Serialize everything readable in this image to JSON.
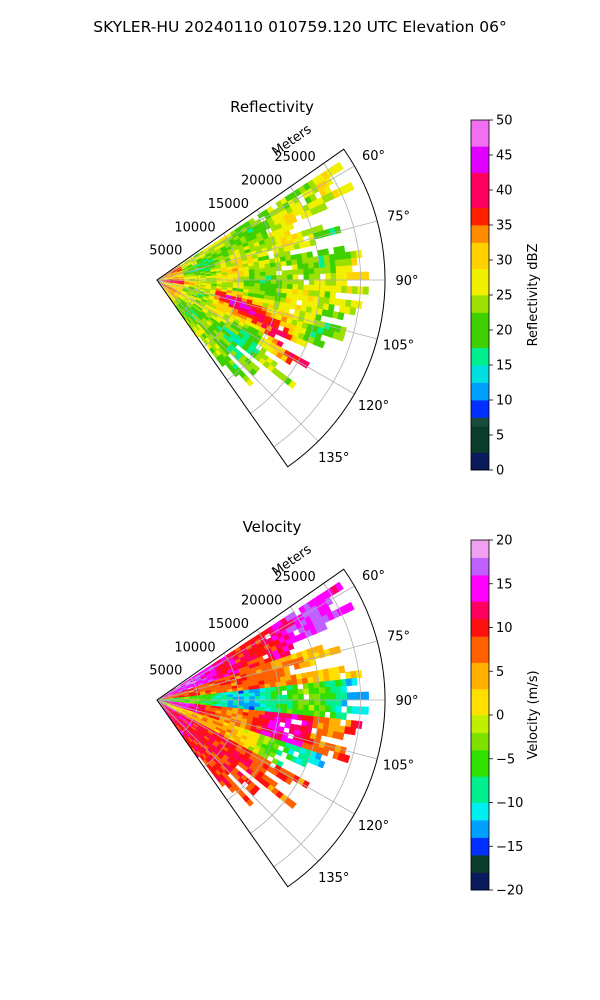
{
  "figure_title": "SKYLER-HU  20240110  010759.120 UTC Elevation 06°",
  "chart_data": [
    {
      "type": "heatmap",
      "projection": "polar-sector",
      "title": "Reflectivity",
      "radial_label": "Meters",
      "radial_ticks": [
        "5000",
        "10000",
        "15000",
        "20000",
        "25000"
      ],
      "radial_values": [
        5000,
        10000,
        15000,
        20000,
        25000
      ],
      "rmax": 28000,
      "azimuth_range": [
        55,
        145
      ],
      "azimuth_ticks": [
        "60°",
        "75°",
        "90°",
        "105°",
        "120°",
        "135°"
      ],
      "azimuth_values": [
        60,
        75,
        90,
        105,
        120,
        135
      ],
      "colorbar_label": "Reflectivity dBZ",
      "colorbar_range": [
        0,
        50
      ],
      "colorbar_ticks": [
        "0",
        "5",
        "10",
        "15",
        "20",
        "25",
        "30",
        "35",
        "40",
        "45",
        "50"
      ],
      "colorbar_tick_values": [
        0,
        5,
        10,
        15,
        20,
        25,
        30,
        35,
        40,
        45,
        50
      ],
      "colormap_stops": [
        [
          0,
          "#0a1a5c"
        ],
        [
          3,
          "#0b3b2a"
        ],
        [
          6,
          "#1a4a3a"
        ],
        [
          8,
          "#0030ff"
        ],
        [
          10,
          "#00a0ff"
        ],
        [
          12,
          "#00e0e0"
        ],
        [
          15,
          "#00f090"
        ],
        [
          18,
          "#40d000"
        ],
        [
          22,
          "#9be000"
        ],
        [
          25,
          "#f0f000"
        ],
        [
          29,
          "#ffd200"
        ],
        [
          32,
          "#ff8c00"
        ],
        [
          35,
          "#ff2000"
        ],
        [
          38,
          "#ff0060"
        ],
        [
          42,
          "#e000ff"
        ],
        [
          46,
          "#f070f0"
        ],
        [
          50,
          "#ffe8ff"
        ]
      ]
    },
    {
      "type": "heatmap",
      "projection": "polar-sector",
      "title": "Velocity",
      "radial_label": "Meters",
      "radial_ticks": [
        "5000",
        "10000",
        "15000",
        "20000",
        "25000"
      ],
      "radial_values": [
        5000,
        10000,
        15000,
        20000,
        25000
      ],
      "rmax": 28000,
      "azimuth_range": [
        55,
        145
      ],
      "azimuth_ticks": [
        "60°",
        "75°",
        "90°",
        "105°",
        "120°",
        "135°"
      ],
      "azimuth_values": [
        60,
        75,
        90,
        105,
        120,
        135
      ],
      "colorbar_label": "Velocity (m/s)",
      "colorbar_range": [
        -20,
        20
      ],
      "colorbar_ticks": [
        "−20",
        "−15",
        "−10",
        "−5",
        "0",
        "5",
        "10",
        "15",
        "20"
      ],
      "colorbar_tick_values": [
        -20,
        -15,
        -10,
        -5,
        0,
        5,
        10,
        15,
        20
      ],
      "colormap_stops": [
        [
          -20,
          "#0a1a5c"
        ],
        [
          -18,
          "#0b3b2a"
        ],
        [
          -16,
          "#0030ff"
        ],
        [
          -14,
          "#00a0ff"
        ],
        [
          -12,
          "#00f0f0"
        ],
        [
          -10,
          "#00f090"
        ],
        [
          -7,
          "#30e000"
        ],
        [
          -4,
          "#80e000"
        ],
        [
          -2,
          "#c0f000"
        ],
        [
          0,
          "#ffe000"
        ],
        [
          3,
          "#ffb000"
        ],
        [
          6,
          "#ff6000"
        ],
        [
          9,
          "#ff1010"
        ],
        [
          11,
          "#ff0060"
        ],
        [
          13,
          "#ff00ff"
        ],
        [
          16,
          "#c060ff"
        ],
        [
          18,
          "#f0a0f0"
        ],
        [
          20,
          "#ffe8ff"
        ]
      ]
    }
  ]
}
